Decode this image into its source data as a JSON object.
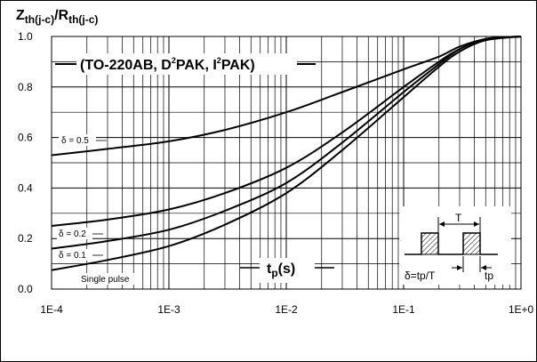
{
  "chart_data": {
    "type": "line",
    "title": "",
    "ylabel_main": "Z",
    "ylabel_sub1": "th(j-c)",
    "ylabel_sep": "/R",
    "ylabel_sub2": "th(j-c)",
    "xunit_main": "t",
    "xunit_sub": "p",
    "xunit_unit": "(s)",
    "x_scale": "log",
    "xlim": [
      0.0001,
      1
    ],
    "ylim": [
      0,
      1
    ],
    "grid": true,
    "x_ticks": [
      "1E-4",
      "1E-3",
      "1E-2",
      "1E-1",
      "1E+0"
    ],
    "y_ticks": [
      "0.0",
      "0.2",
      "0.4",
      "0.6",
      "0.8",
      "1.0"
    ],
    "package_label": {
      "p1": "(TO-220AB, D",
      "s1": "2",
      "p2": "PAK, I",
      "s2": "2",
      "p3": "PAK)"
    },
    "series": [
      {
        "name": "δ = 0.5",
        "x": [
          0.0001,
          0.0003,
          0.001,
          0.003,
          0.01,
          0.03,
          0.1,
          0.2,
          0.3,
          0.5,
          1
        ],
        "y": [
          0.53,
          0.555,
          0.585,
          0.63,
          0.7,
          0.78,
          0.87,
          0.92,
          0.96,
          0.99,
          1.0
        ]
      },
      {
        "name": "δ = 0.2",
        "x": [
          0.0001,
          0.0003,
          0.001,
          0.003,
          0.01,
          0.03,
          0.1,
          0.2,
          0.3,
          0.5,
          1
        ],
        "y": [
          0.25,
          0.275,
          0.315,
          0.38,
          0.48,
          0.62,
          0.8,
          0.9,
          0.95,
          0.99,
          1.0
        ]
      },
      {
        "name": "δ = 0.1",
        "x": [
          0.0001,
          0.0003,
          0.001,
          0.003,
          0.01,
          0.03,
          0.1,
          0.2,
          0.3,
          0.5,
          1
        ],
        "y": [
          0.16,
          0.19,
          0.235,
          0.31,
          0.42,
          0.58,
          0.78,
          0.89,
          0.95,
          0.99,
          1.0
        ]
      },
      {
        "name": "Single pulse",
        "x": [
          0.0001,
          0.0003,
          0.001,
          0.003,
          0.01,
          0.03,
          0.1,
          0.2,
          0.3,
          0.5,
          1
        ],
        "y": [
          0.075,
          0.115,
          0.17,
          0.255,
          0.38,
          0.55,
          0.76,
          0.88,
          0.94,
          0.985,
          1.0
        ]
      }
    ],
    "inset": {
      "period_label": "T",
      "formula": "δ=tp/T",
      "pulse_label": "tp"
    }
  }
}
